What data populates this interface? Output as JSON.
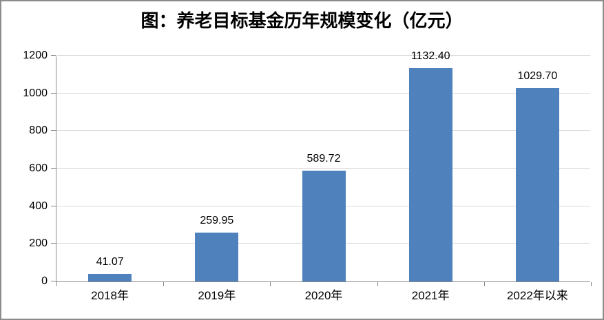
{
  "chart_data": {
    "type": "bar",
    "title": "图：养老目标基金历年规模变化（亿元）",
    "categories": [
      "2018年",
      "2019年",
      "2020年",
      "2021年",
      "2022年以来"
    ],
    "values": [
      41.07,
      259.95,
      589.72,
      1132.4,
      1029.7
    ],
    "value_labels": [
      "41.07",
      "259.95",
      "589.72",
      "1132.40",
      "1029.70"
    ],
    "xlabel": "",
    "ylabel": "",
    "ylim": [
      0,
      1200
    ],
    "ytick_interval": 200,
    "ytick_labels": [
      "0",
      "200",
      "400",
      "600",
      "800",
      "1000",
      "1200"
    ],
    "grid": true,
    "legend": "none",
    "colors": {
      "bar": "#4f81bd",
      "gridline": "#d9d9d9",
      "axis": "#898989",
      "frame_border": "#8c8c8c",
      "text": "#000000"
    }
  }
}
